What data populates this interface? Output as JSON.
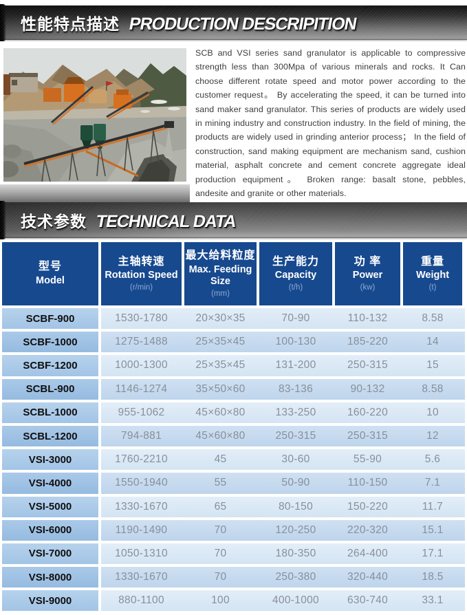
{
  "banners": {
    "production": {
      "zh": "性能特点描述",
      "en": "PRODUCTION DESCRIPITION"
    },
    "technical": {
      "zh": "技术参数",
      "en": "TECHNICAL DATA"
    }
  },
  "photo": {
    "name": "sand-granulator-production-line-in-mountain-quarry"
  },
  "description": {
    "text": "SCB and VSI series sand granulator is applicable to compressive strength less than 300Mpa of various minerals and rocks. It Can choose different rotate speed and motor power according to the customer request。 By accelerating the speed, it can be turned into sand maker sand granulator. This series of products are widely used in mining industry and construction industry. In the field of mining, the products are widely used in grinding anterior process；  In the field of construction, sand making equipment are mechanism sand, cushion material, asphalt concrete and cement concrete aggregate ideal production equipment。 Broken range: basalt stone, pebbles, andesite and granite or other materials."
  },
  "table": {
    "columns": [
      {
        "zh": "型号",
        "en": "Model",
        "unit": ""
      },
      {
        "zh": "主轴转速",
        "en": "Rotation Speed",
        "unit": "(r/min)"
      },
      {
        "zh": "最大给料粒度",
        "en": "Max. Feeding Size",
        "unit": "(mm)"
      },
      {
        "zh": "生产能力",
        "en": "Capacity",
        "unit": "(t/h)"
      },
      {
        "zh": "功 率",
        "en": "Power",
        "unit": "(kw)"
      },
      {
        "zh": "重量",
        "en": "Weight",
        "unit": "(t)"
      }
    ],
    "rows": [
      {
        "model": "SCBF-900",
        "values": [
          "1530-1780",
          "20×30×35",
          "70-90",
          "110-132",
          "8.58"
        ]
      },
      {
        "model": "SCBF-1000",
        "values": [
          "1275-1488",
          "25×35×45",
          "100-130",
          "185-220",
          "14"
        ]
      },
      {
        "model": "SCBF-1200",
        "values": [
          "1000-1300",
          "25×35×45",
          "131-200",
          "250-315",
          "15"
        ]
      },
      {
        "model": "SCBL-900",
        "values": [
          "1146-1274",
          "35×50×60",
          "83-136",
          "90-132",
          "8.58"
        ]
      },
      {
        "model": "SCBL-1000",
        "values": [
          "955-1062",
          "45×60×80",
          "133-250",
          "160-220",
          "10"
        ]
      },
      {
        "model": "SCBL-1200",
        "values": [
          "794-881",
          "45×60×80",
          "250-315",
          "250-315",
          "12"
        ]
      },
      {
        "model": "VSI-3000",
        "values": [
          "1760-2210",
          "45",
          "30-60",
          "55-90",
          "5.6"
        ]
      },
      {
        "model": "VSI-4000",
        "values": [
          "1550-1940",
          "55",
          "50-90",
          "110-150",
          "7.1"
        ]
      },
      {
        "model": "VSI-5000",
        "values": [
          "1330-1670",
          "65",
          "80-150",
          "150-220",
          "11.7"
        ]
      },
      {
        "model": "VSI-6000",
        "values": [
          "1190-1490",
          "70",
          "120-250",
          "220-320",
          "15.1"
        ]
      },
      {
        "model": "VSI-7000",
        "values": [
          "1050-1310",
          "70",
          "180-350",
          "264-400",
          "17.1"
        ]
      },
      {
        "model": "VSI-8000",
        "values": [
          "1330-1670",
          "70",
          "250-380",
          "320-440",
          "18.5"
        ]
      },
      {
        "model": "VSI-9000",
        "values": [
          "880-1100",
          "100",
          "400-1000",
          "630-740",
          "33.1"
        ]
      }
    ]
  },
  "colors": {
    "header_blue": "#17498f",
    "header_unit_text": "#8fa9d2",
    "row_odd_model": "#a9c9e8",
    "row_odd_data": "#dbe9f6",
    "row_even_model": "#9dc1e3",
    "row_even_data": "#c6daf0",
    "value_text": "#878f9a",
    "machine_orange": "#d8711f",
    "hopper_green": "#1f4c3a"
  }
}
